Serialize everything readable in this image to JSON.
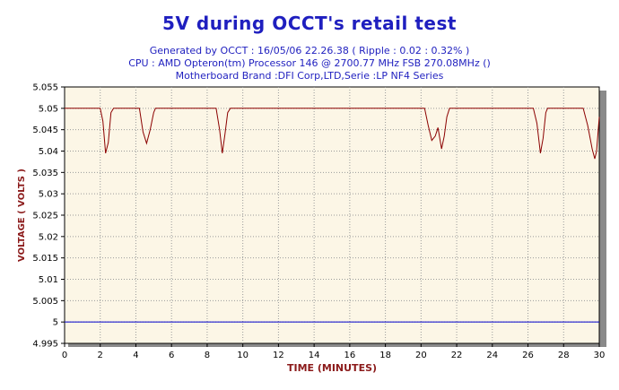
{
  "chart_data": {
    "type": "line",
    "title": "5V during OCCT's retail test",
    "subtitle_lines": [
      "Generated by OCCT : 16/05/06 22.26.38 ( Ripple : 0.02 : 0.32% )",
      "CPU : AMD Opteron(tm) Processor 146     @ 2700.77 MHz FSB 270.08MHz ()",
      "Motherboard Brand :DFI Corp,LTD,Serie :LP NF4 Series"
    ],
    "xlabel": "TIME (MINUTES)",
    "ylabel": "VOLTAGE ( VOLTS )",
    "xlim": [
      0,
      30
    ],
    "ylim": [
      4.995,
      5.055
    ],
    "x_ticks": [
      "0",
      "2",
      "4",
      "6",
      "8",
      "10",
      "12",
      "14",
      "16",
      "18",
      "20",
      "22",
      "24",
      "26",
      "28",
      "30"
    ],
    "y_ticks": [
      "4.995",
      "5",
      "5.005",
      "5.01",
      "5.015",
      "5.02",
      "5.025",
      "5.03",
      "5.035",
      "5.04",
      "5.045",
      "5.05",
      "5.055"
    ],
    "grid": true,
    "colors": {
      "series": "#8b0000",
      "reference": "#0000cc",
      "plot_background": "#fcf6e6",
      "title": "#1f1fbf",
      "axis_label": "#8b1a1a",
      "grid": "#9a9a9a"
    },
    "series": [
      {
        "values": [
          [
            0,
            5.05
          ],
          [
            2.0,
            5.05
          ],
          [
            2.15,
            5.047
          ],
          [
            2.3,
            5.0395
          ],
          [
            2.45,
            5.042
          ],
          [
            2.6,
            5.049
          ],
          [
            2.75,
            5.05
          ],
          [
            4.2,
            5.05
          ],
          [
            4.4,
            5.0445
          ],
          [
            4.6,
            5.0418
          ],
          [
            4.8,
            5.045
          ],
          [
            5.0,
            5.049
          ],
          [
            5.1,
            5.05
          ],
          [
            8.5,
            5.05
          ],
          [
            8.7,
            5.045
          ],
          [
            8.85,
            5.0395
          ],
          [
            9.0,
            5.044
          ],
          [
            9.15,
            5.049
          ],
          [
            9.3,
            5.05
          ],
          [
            20.2,
            5.05
          ],
          [
            20.4,
            5.046
          ],
          [
            20.6,
            5.0425
          ],
          [
            20.8,
            5.0435
          ],
          [
            20.95,
            5.0455
          ],
          [
            21.05,
            5.043
          ],
          [
            21.15,
            5.0405
          ],
          [
            21.3,
            5.0435
          ],
          [
            21.45,
            5.048
          ],
          [
            21.6,
            5.05
          ],
          [
            26.3,
            5.05
          ],
          [
            26.5,
            5.0465
          ],
          [
            26.7,
            5.0395
          ],
          [
            26.85,
            5.043
          ],
          [
            27.0,
            5.049
          ],
          [
            27.1,
            5.05
          ],
          [
            29.1,
            5.05
          ],
          [
            29.35,
            5.046
          ],
          [
            29.6,
            5.0405
          ],
          [
            29.75,
            5.0382
          ],
          [
            29.85,
            5.04
          ],
          [
            30,
            5.048
          ]
        ]
      }
    ],
    "reference_line": 5.0
  }
}
